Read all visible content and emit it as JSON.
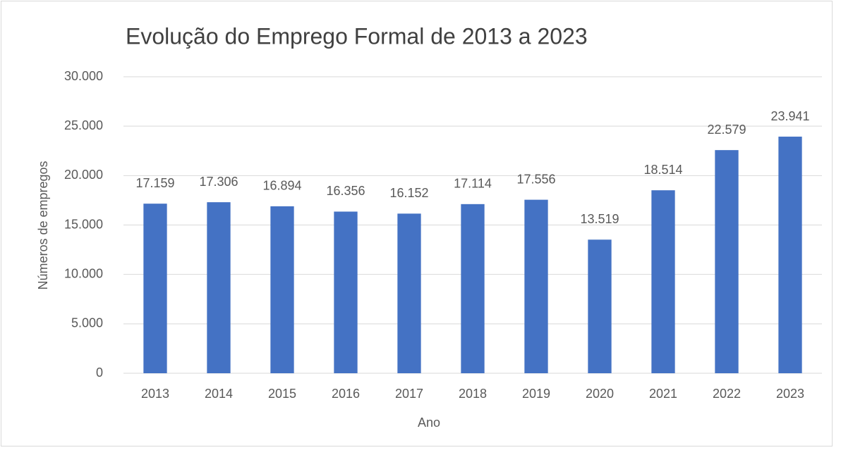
{
  "chart_data": {
    "type": "bar",
    "title": "Evolução do Emprego Formal de 2013 a 2023",
    "x_label": "Ano",
    "y_label": "Números de empregos",
    "categories": [
      "2013",
      "2014",
      "2015",
      "2016",
      "2017",
      "2018",
      "2019",
      "2020",
      "2021",
      "2022",
      "2023"
    ],
    "values": [
      17159,
      17306,
      16894,
      16356,
      16152,
      17114,
      17556,
      13519,
      18514,
      22579,
      23941
    ],
    "value_labels": [
      "17.159",
      "17.306",
      "16.894",
      "16.356",
      "16.152",
      "17.114",
      "17.556",
      "13.519",
      "18.514",
      "22.579",
      "23.941"
    ],
    "color": "#4472c4",
    "ylim": [
      0,
      30000
    ],
    "yticks": [
      0,
      {
        "value": 5000,
        "label": "5.000"
      },
      {
        "value": 10000,
        "label": "10.000"
      },
      {
        "value": 15000,
        "label": "15.000"
      },
      {
        "value": 20000,
        "label": "20.000"
      },
      {
        "value": 25000,
        "label": "25.000"
      },
      {
        "value": 30000,
        "label": "30.000"
      }
    ],
    "grid": true
  }
}
